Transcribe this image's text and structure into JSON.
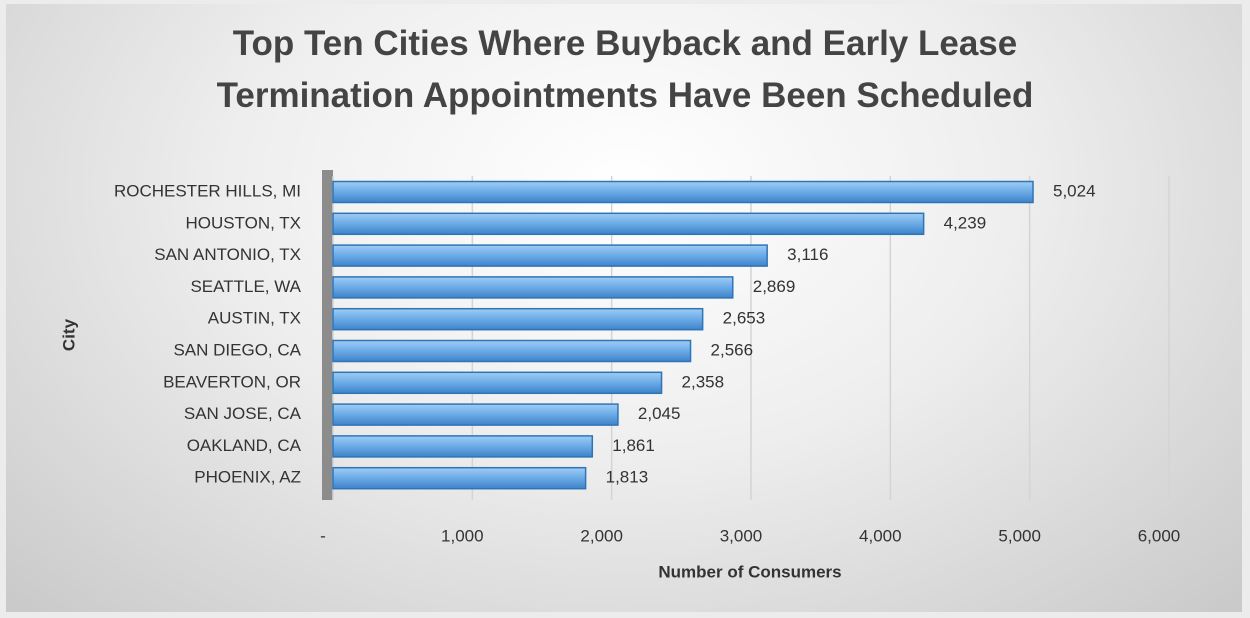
{
  "chart_data": {
    "type": "bar",
    "orientation": "horizontal",
    "title": "Top Ten Cities Where Buyback and Early Lease Termination Appointments Have Been Scheduled",
    "xlabel": "Number of Consumers",
    "ylabel": "City",
    "categories": [
      "ROCHESTER HILLS, MI",
      "HOUSTON, TX",
      "SAN ANTONIO, TX",
      "SEATTLE, WA",
      "AUSTIN, TX",
      "SAN DIEGO, CA",
      "BEAVERTON, OR",
      "SAN JOSE, CA",
      "OAKLAND, CA",
      "PHOENIX, AZ"
    ],
    "values": [
      5024,
      4239,
      3116,
      2869,
      2653,
      2566,
      2358,
      2045,
      1861,
      1813
    ],
    "value_labels": [
      "5,024",
      "4,239",
      "3,116",
      "2,869",
      "2,653",
      "2,566",
      "2,358",
      "2,045",
      "1,861",
      "1,813"
    ],
    "color": "#5b9bd5",
    "xlim": [
      0,
      6000
    ],
    "xticks": [
      {
        "value": 0,
        "label": "-"
      },
      {
        "value": 1000,
        "label": "1,000"
      },
      {
        "value": 2000,
        "label": "2,000"
      },
      {
        "value": 3000,
        "label": "3,000"
      },
      {
        "value": 4000,
        "label": "4,000"
      },
      {
        "value": 5000,
        "label": "5,000"
      },
      {
        "value": 6000,
        "label": "6,000"
      }
    ],
    "grid": true
  }
}
